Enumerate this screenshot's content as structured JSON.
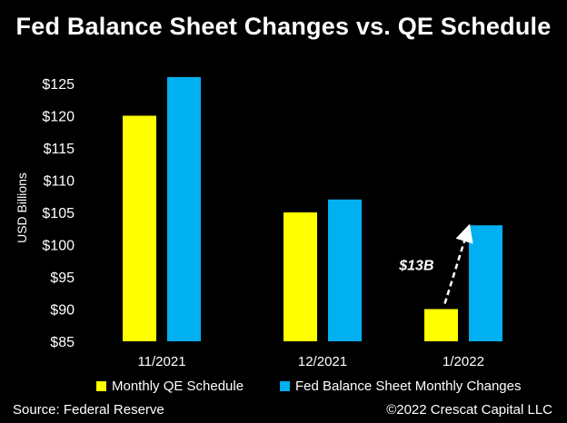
{
  "title": "Fed Balance Sheet Changes vs. QE Schedule",
  "source": "Source: Federal Reserve",
  "copyright": "©2022 Crescat Capital LLC",
  "colors": {
    "qe": "#ffff00",
    "fed": "#00b0f0",
    "background": "#000000",
    "text": "#ffffff"
  },
  "chart_data": {
    "type": "bar",
    "categories": [
      "11/2021",
      "12/2021",
      "1/2022"
    ],
    "series": [
      {
        "name": "Monthly QE Schedule",
        "values": [
          120,
          105,
          90
        ],
        "color": "#ffff00"
      },
      {
        "name": "Fed Balance Sheet Monthly Changes",
        "values": [
          126,
          107,
          103
        ],
        "color": "#00b0f0"
      }
    ],
    "ylabel": "USD Billions",
    "xlabel": "",
    "ylim": [
      85,
      125
    ],
    "yticks": [
      "$85",
      "$90",
      "$95",
      "$100",
      "$105",
      "$110",
      "$115",
      "$120",
      "$125"
    ],
    "grid": false,
    "legend": "bottom",
    "annotation": {
      "text": "$13B",
      "category": "1/2022",
      "from": 90,
      "to": 103
    }
  }
}
